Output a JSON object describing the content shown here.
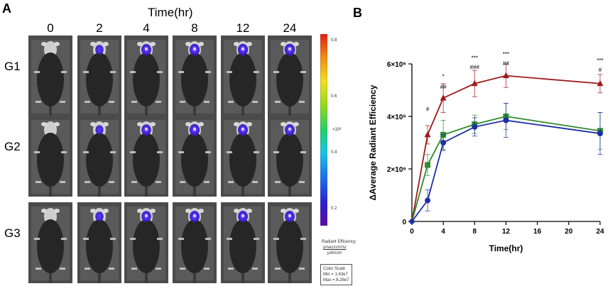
{
  "panelA": {
    "letter": "A",
    "time_title": "Time(hr)",
    "time_labels": [
      "0",
      "2",
      "4",
      "8",
      "12",
      "24"
    ],
    "groups": [
      "G1",
      "G2",
      "G3"
    ],
    "signal_intensity": [
      [
        0.0,
        0.45,
        0.75,
        0.8,
        0.8,
        0.85
      ],
      [
        0.0,
        0.4,
        0.7,
        0.8,
        0.75,
        0.75
      ],
      [
        0.0,
        0.45,
        0.7,
        0.75,
        0.75,
        0.75
      ]
    ],
    "colorbar": {
      "ticks": [
        "0.8",
        "0.6",
        "0.4",
        "0.2"
      ],
      "tick_values": [
        0.8,
        0.6,
        0.4,
        0.2
      ],
      "range": [
        0.143,
        0.826
      ],
      "exponent": "×10⁸",
      "title": "Radiant Efficiency",
      "units_top": "p/sec/cm²/sr",
      "units_bottom": "μW/cm²",
      "scale_title": "Color Scale",
      "scale_min": "Min = 1.43e7",
      "scale_max": "Max = 8.26e7"
    }
  },
  "panelB": {
    "letter": "B"
  },
  "chart_data": {
    "type": "line",
    "xlabel": "Time(hr)",
    "ylabel": "ΔAverage Radiant Efficiency",
    "x": [
      0,
      2,
      4,
      8,
      12,
      24
    ],
    "xlim": [
      0,
      24
    ],
    "ylim": [
      0,
      6000000
    ],
    "xticks": [
      0,
      4,
      8,
      12,
      16,
      20,
      24
    ],
    "xtick_labels": [
      "0",
      "4",
      "8",
      "12",
      "16",
      "20",
      "24"
    ],
    "yticks": [
      0,
      2000000,
      4000000,
      6000000
    ],
    "ytick_labels": [
      "0",
      "2×10⁶",
      "4×10⁶",
      "6×10⁶"
    ],
    "grid": false,
    "legend": "none",
    "series": [
      {
        "color": "#9e1b1b",
        "marker": "triangle",
        "values": [
          0,
          3300000,
          4700000,
          5250000,
          5550000,
          5250000
        ],
        "errors": [
          0,
          350000,
          550000,
          500000,
          450000,
          350000
        ]
      },
      {
        "color": "#2e8b2e",
        "marker": "square",
        "values": [
          0,
          2150000,
          3300000,
          3700000,
          4000000,
          3450000
        ],
        "errors": [
          0,
          400000,
          550000,
          350000,
          500000,
          700000
        ]
      },
      {
        "color": "#1c2fa6",
        "marker": "circle",
        "values": [
          0,
          800000,
          3000000,
          3600000,
          3850000,
          3350000
        ],
        "errors": [
          0,
          400000,
          300000,
          350000,
          650000,
          800000
        ]
      }
    ],
    "annotations": [
      {
        "x": 2,
        "y": 4200000,
        "text": "#"
      },
      {
        "x": 4,
        "y": 5450000,
        "text": "*"
      },
      {
        "x": 4,
        "y": 5050000,
        "text": "##"
      },
      {
        "x": 8,
        "y": 6150000,
        "text": "***"
      },
      {
        "x": 8,
        "y": 5800000,
        "text": "###"
      },
      {
        "x": 12,
        "y": 6300000,
        "text": "***"
      },
      {
        "x": 12,
        "y": 5950000,
        "text": "##"
      },
      {
        "x": 24,
        "y": 6050000,
        "text": "***"
      },
      {
        "x": 24,
        "y": 5700000,
        "text": "#"
      }
    ]
  }
}
